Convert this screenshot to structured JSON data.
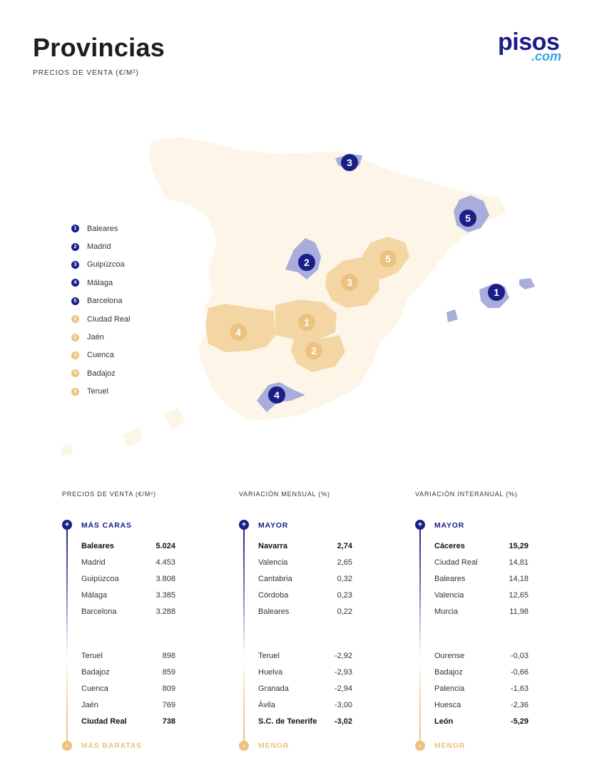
{
  "header": {
    "title": "Provincias",
    "subtitle": "PRECIOS DE VENTA (€/M²)"
  },
  "logo": {
    "main": "pisos",
    "suffix": ".com"
  },
  "colors": {
    "navy": "#1a1e86",
    "navy_region": "#a9addb",
    "orange": "#edc27f",
    "orange_region": "#f4d6a4",
    "land": "#fdf5e8"
  },
  "map_markers": [
    {
      "group": "expensive",
      "number": "1",
      "region": "Baleares"
    },
    {
      "group": "expensive",
      "number": "2",
      "region": "Madrid"
    },
    {
      "group": "expensive",
      "number": "3",
      "region": "Guipúzcoa"
    },
    {
      "group": "expensive",
      "number": "4",
      "region": "Málaga"
    },
    {
      "group": "expensive",
      "number": "5",
      "region": "Barcelona"
    },
    {
      "group": "cheap",
      "number": "1",
      "region": "Ciudad Real"
    },
    {
      "group": "cheap",
      "number": "2",
      "region": "Jaén"
    },
    {
      "group": "cheap",
      "number": "3",
      "region": "Cuenca"
    },
    {
      "group": "cheap",
      "number": "4",
      "region": "Badajoz"
    },
    {
      "group": "cheap",
      "number": "5",
      "region": "Teruel"
    }
  ],
  "legend": [
    {
      "number": "1",
      "label": "Baleares",
      "group": "expensive"
    },
    {
      "number": "2",
      "label": "Madrid",
      "group": "expensive"
    },
    {
      "number": "3",
      "label": "Guipúzcoa",
      "group": "expensive"
    },
    {
      "number": "4",
      "label": "Málaga",
      "group": "expensive"
    },
    {
      "number": "5",
      "label": "Barcelona",
      "group": "expensive"
    },
    {
      "number": "1",
      "label": "Ciudad Real",
      "group": "cheap"
    },
    {
      "number": "2",
      "label": "Jaén",
      "group": "cheap"
    },
    {
      "number": "3",
      "label": "Cuenca",
      "group": "cheap"
    },
    {
      "number": "4",
      "label": "Badajoz",
      "group": "cheap"
    },
    {
      "number": "5",
      "label": "Teruel",
      "group": "cheap"
    }
  ],
  "tables": [
    {
      "title": "PRECIOS DE VENTA (€/M²)",
      "top_label": "MÁS CARAS",
      "bottom_label": "MÁS BARATAS",
      "plus_symbol": "+",
      "minus_symbol": "-",
      "top": [
        {
          "name": "Baleares",
          "value": "5.024",
          "bold": true
        },
        {
          "name": "Madrid",
          "value": "4.453"
        },
        {
          "name": "Guipúzcoa",
          "value": "3.808"
        },
        {
          "name": "Málaga",
          "value": "3.385"
        },
        {
          "name": "Barcelona",
          "value": "3.288"
        }
      ],
      "bottom": [
        {
          "name": "Teruel",
          "value": "898"
        },
        {
          "name": "Badajoz",
          "value": "859"
        },
        {
          "name": "Cuenca",
          "value": "809"
        },
        {
          "name": "Jaén",
          "value": "769"
        },
        {
          "name": "Ciudad Real",
          "value": "738",
          "bold": true
        }
      ]
    },
    {
      "title": "VARIACIÓN MENSUAL (%)",
      "top_label": "MAYOR",
      "bottom_label": "MENOR",
      "plus_symbol": "+",
      "minus_symbol": "-",
      "top": [
        {
          "name": "Navarra",
          "value": "2,74",
          "bold": true
        },
        {
          "name": "Valencia",
          "value": "2,65"
        },
        {
          "name": "Cantabria",
          "value": "0,32"
        },
        {
          "name": "Córdoba",
          "value": "0,23"
        },
        {
          "name": "Baleares",
          "value": "0,22"
        }
      ],
      "bottom": [
        {
          "name": "Teruel",
          "value": "-2,92"
        },
        {
          "name": "Huelva",
          "value": "-2,93"
        },
        {
          "name": "Granada",
          "value": "-2,94"
        },
        {
          "name": "Ávila",
          "value": "-3,00"
        },
        {
          "name": "S.C. de Tenerife",
          "value": "-3,02",
          "bold": true
        }
      ]
    },
    {
      "title": "VARIACIÓN INTERANUAL (%)",
      "top_label": "MAYOR",
      "bottom_label": "MENOR",
      "plus_symbol": "+",
      "minus_symbol": "-",
      "top": [
        {
          "name": "Cáceres",
          "value": "15,29",
          "bold": true
        },
        {
          "name": "Ciudad Real",
          "value": "14,81"
        },
        {
          "name": "Baleares",
          "value": "14,18"
        },
        {
          "name": "Valencia",
          "value": "12,65"
        },
        {
          "name": "Murcia",
          "value": "11,98"
        }
      ],
      "bottom": [
        {
          "name": "Ourense",
          "value": "-0,03"
        },
        {
          "name": "Badajoz",
          "value": "-0,66"
        },
        {
          "name": "Palencia",
          "value": "-1,63"
        },
        {
          "name": "Huesca",
          "value": "-2,36"
        },
        {
          "name": "León",
          "value": "-5,29",
          "bold": true
        }
      ]
    }
  ]
}
